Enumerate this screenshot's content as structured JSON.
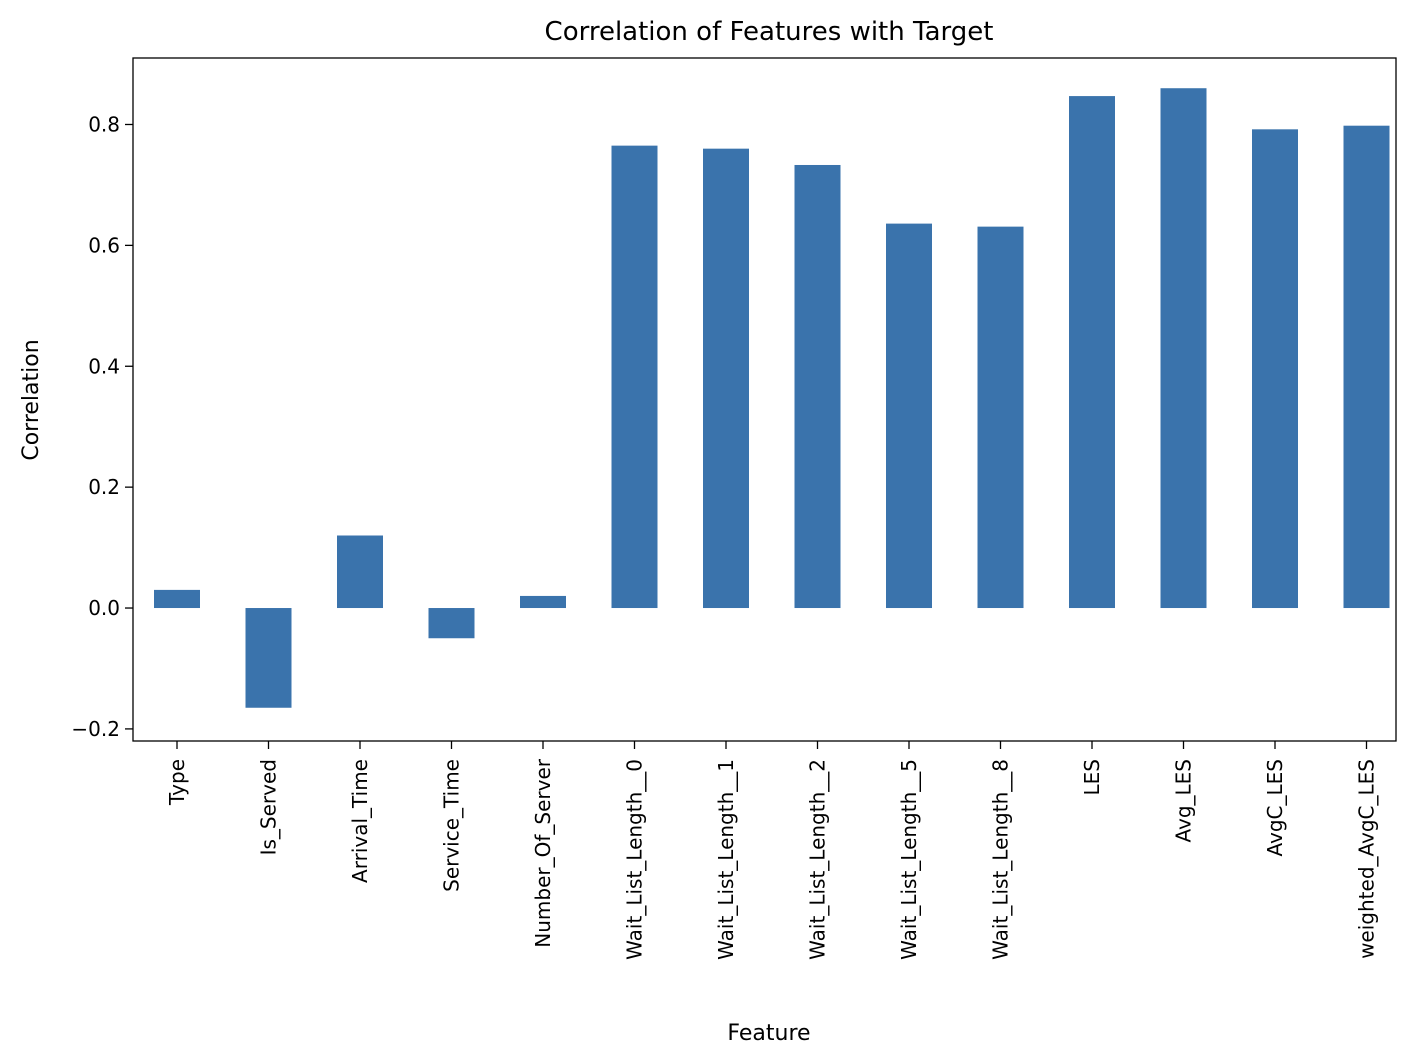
{
  "chart_data": {
    "type": "bar",
    "title": "Correlation of Features with Target",
    "xlabel": "Feature",
    "ylabel": "Correlation",
    "categories": [
      "Type",
      "Is_Served",
      "Arrival_Time",
      "Service_Time",
      "Number_Of_Server",
      "Wait_List_Length__0",
      "Wait_List_Length__1",
      "Wait_List_Length__2",
      "Wait_List_Length__5",
      "Wait_List_Length__8",
      "LES",
      "Avg_LES",
      "AvgC_LES",
      "weighted_AvgC_LES"
    ],
    "values": [
      0.03,
      -0.165,
      0.12,
      -0.05,
      0.02,
      0.765,
      0.76,
      0.733,
      0.636,
      0.631,
      0.847,
      0.86,
      0.792,
      0.798
    ],
    "ylim": [
      -0.22,
      0.91
    ],
    "yticks": [
      -0.2,
      0.0,
      0.2,
      0.4,
      0.6,
      0.8
    ],
    "ytick_labels": [
      "−0.2",
      "0.0",
      "0.2",
      "0.4",
      "0.6",
      "0.8"
    ],
    "grid": false,
    "legend": "none",
    "bar_color": "#3a73ac"
  }
}
